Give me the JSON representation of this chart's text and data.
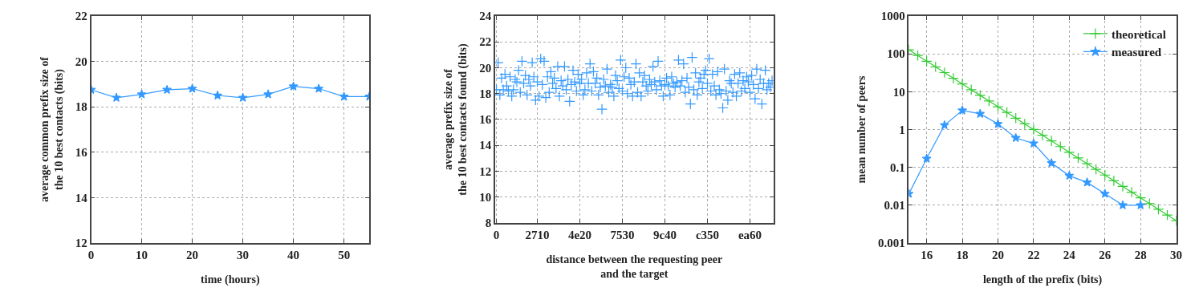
{
  "chart_data": [
    {
      "type": "line",
      "xlabel": "time (hours)",
      "ylabel": "average common prefix size of\nthe 10 best contacts (bits)",
      "x": [
        0,
        5,
        10,
        15,
        20,
        25,
        30,
        35,
        40,
        45,
        50,
        55
      ],
      "series": [
        {
          "color": "#3399ff",
          "values": [
            18.75,
            18.4,
            18.55,
            18.75,
            18.8,
            18.5,
            18.4,
            18.55,
            18.9,
            18.8,
            18.45,
            18.45
          ]
        }
      ],
      "xlim": [
        0,
        55
      ],
      "ylim": [
        12,
        22
      ],
      "xticks": [
        0,
        10,
        20,
        30,
        40,
        50
      ],
      "yticks": [
        12,
        14,
        16,
        18,
        20,
        22
      ],
      "grid": true,
      "marker": "star",
      "legend": false
    },
    {
      "type": "scatter",
      "xlabel": "distance between the requesting peer\nand the target",
      "ylabel": "average prefix size of\nthe 10 best contacts found (bits)",
      "categories": [
        "0",
        null,
        null,
        null,
        null,
        null,
        null,
        null,
        null,
        null,
        null,
        null,
        null,
        null,
        null,
        null,
        null,
        null,
        null,
        null,
        null,
        null,
        null,
        null,
        "2710",
        null,
        null,
        null,
        null,
        null,
        null,
        null,
        null,
        null,
        null,
        null,
        null,
        null,
        null,
        null,
        null,
        null,
        null,
        null,
        null,
        null,
        null,
        null,
        null,
        "4e20",
        null,
        null,
        null,
        null,
        null,
        null,
        null,
        null,
        null,
        null,
        null,
        null,
        null,
        null,
        null,
        null,
        null,
        null,
        null,
        null,
        null,
        null,
        null,
        null,
        "7530",
        null,
        null,
        null,
        null,
        null,
        null,
        null,
        null,
        null,
        null,
        null,
        null,
        null,
        null,
        null,
        null,
        null,
        null,
        null,
        null,
        null,
        null,
        null,
        null,
        "9c40",
        null,
        null,
        null,
        null,
        null,
        null,
        null,
        null,
        null,
        null,
        null,
        null,
        null,
        null,
        null,
        null,
        null,
        null,
        null,
        null,
        null,
        null,
        null,
        null,
        "c350",
        null,
        null,
        null,
        null,
        null,
        null,
        null,
        null,
        null,
        null,
        null,
        null,
        null,
        null,
        null,
        null,
        null,
        null,
        null,
        null,
        null,
        null,
        null,
        null,
        "ea60",
        null,
        null,
        null,
        null,
        null,
        null,
        null,
        null,
        null,
        null,
        null,
        null,
        null
      ],
      "series": [
        {
          "color": "#3399ff",
          "values": [
            18.3,
            20.4,
            17.9,
            19.2,
            18.3,
            19.5,
            18.6,
            18.2,
            19.3,
            17.8,
            18.3,
            19.1,
            18.9,
            19.8,
            18.1,
            20.5,
            18.8,
            19.4,
            17.9,
            19.1,
            18.6,
            20.4,
            19.3,
            17.5,
            18.9,
            17.8,
            20.7,
            18.7,
            20.5,
            17.7,
            19.3,
            18.1,
            19.7,
            18.8,
            19.2,
            18.4,
            20.1,
            17.8,
            19.0,
            18.6,
            20.1,
            18.3,
            19.1,
            17.4,
            18.7,
            19.8,
            18.9,
            18.2,
            19.5,
            18.8,
            19.1,
            17.9,
            18.3,
            19.6,
            18.8,
            20.3,
            18.2,
            19.7,
            18.8,
            19.2,
            17.9,
            18.5,
            16.8,
            19.1,
            18.6,
            19.9,
            18.1,
            18.7,
            18.5,
            17.8,
            19.4,
            19.0,
            18.4,
            20.6,
            18.2,
            19.3,
            20.0,
            18.0,
            19.2,
            18.7,
            17.8,
            18.9,
            20.3,
            18.1,
            19.6,
            17.8,
            18.9,
            19.4,
            18.6,
            18.2,
            19.1,
            18.7,
            20.1,
            18.9,
            18.3,
            20.5,
            19.0,
            18.6,
            17.8,
            18.7,
            19.2,
            18.6,
            17.9,
            19.3,
            18.8,
            18.5,
            18.9,
            20.6,
            18.6,
            19.0,
            20.3,
            18.1,
            19.2,
            18.5,
            17.2,
            20.8,
            18.3,
            19.6,
            17.9,
            18.9,
            19.2,
            18.4,
            19.5,
            19.8,
            18.8,
            20.7,
            18.2,
            19.5,
            18.6,
            17.9,
            19.7,
            18.3,
            18.0,
            16.9,
            19.9,
            18.2,
            17.5,
            19.0,
            18.8,
            18.1,
            19.5,
            17.8,
            18.8,
            19.6,
            18.2,
            19.0,
            18.4,
            19.3,
            18.9,
            18.1,
            19.4,
            18.7,
            17.6,
            19.9,
            18.4,
            19.1,
            17.2,
            18.8,
            19.8,
            18.3,
            18.8,
            18.5,
            19.0
          ]
        }
      ],
      "ylim": [
        8,
        24
      ],
      "yticks": [
        8,
        10,
        12,
        14,
        16,
        18,
        20,
        22,
        24
      ],
      "grid": true,
      "marker": "cross",
      "legend": false
    },
    {
      "type": "line",
      "xlabel": "length of the prefix (bits)",
      "ylabel": "mean number of peers",
      "log": "y",
      "series": [
        {
          "name": "theoretical",
          "color": "#33cc33",
          "marker": "cross",
          "x": [
            15,
            15.5,
            16,
            16.5,
            17,
            17.5,
            18,
            18.5,
            19,
            19.5,
            20,
            20.5,
            21,
            21.5,
            22,
            22.5,
            23,
            23.5,
            24,
            24.5,
            25,
            25.5,
            26,
            26.5,
            27,
            27.5,
            28,
            28.5,
            29,
            29.5,
            30
          ],
          "values": [
            128,
            90.5,
            64,
            45.3,
            32,
            22.6,
            16,
            11.3,
            8,
            5.66,
            4,
            2.83,
            2,
            1.41,
            1,
            0.707,
            0.5,
            0.354,
            0.25,
            0.177,
            0.125,
            0.0884,
            0.0625,
            0.0442,
            0.0313,
            0.0221,
            0.0156,
            0.011,
            0.0078,
            0.0055,
            0.0039
          ]
        },
        {
          "name": "measured",
          "color": "#3399ff",
          "marker": "star",
          "x": [
            15,
            16,
            17,
            18,
            19,
            20,
            21,
            22,
            23,
            24,
            25,
            26,
            27,
            28
          ],
          "values": [
            0.02,
            0.17,
            1.3,
            3.2,
            2.6,
            1.4,
            0.6,
            0.43,
            0.13,
            0.06,
            0.04,
            0.02,
            0.01,
            0.01
          ]
        }
      ],
      "xlim": [
        15,
        30
      ],
      "ylim": [
        0.001,
        1000
      ],
      "xticks": [
        16,
        18,
        20,
        22,
        24,
        26,
        28,
        30
      ],
      "yticks": [
        0.001,
        0.01,
        0.1,
        1,
        10,
        100,
        1000
      ],
      "grid": true,
      "legend": "top right"
    }
  ]
}
